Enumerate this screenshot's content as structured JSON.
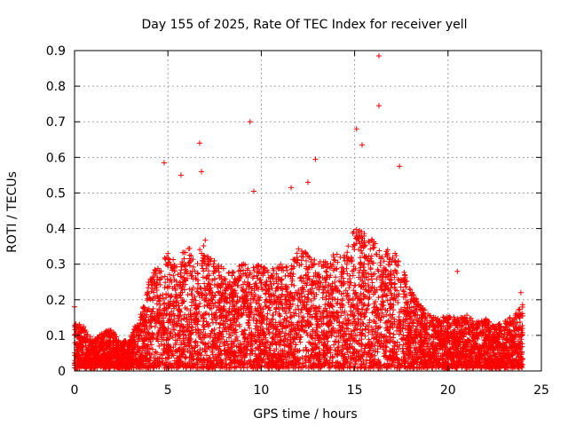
{
  "chart_data": {
    "type": "scatter",
    "title": "Day 155 of 2025, Rate Of TEC Index for receiver yell",
    "xlabel": "GPS time / hours",
    "ylabel": "ROTI / TECUs",
    "xlim": [
      0,
      25
    ],
    "ylim": [
      0,
      0.9
    ],
    "x_ticks": [
      0,
      5,
      10,
      15,
      20,
      25
    ],
    "y_ticks": [
      0,
      0.1,
      0.2,
      0.3,
      0.4,
      0.5,
      0.6,
      0.7,
      0.8,
      0.9
    ],
    "grid": true,
    "marker": "+",
    "color": "#ff0000",
    "series": [
      {
        "name": "ROTI",
        "x_range": [
          0,
          24
        ],
        "notable_points": [
          {
            "x": 16.3,
            "y": 0.885
          },
          {
            "x": 16.3,
            "y": 0.745
          },
          {
            "x": 9.4,
            "y": 0.7
          },
          {
            "x": 15.1,
            "y": 0.68
          },
          {
            "x": 6.7,
            "y": 0.64
          },
          {
            "x": 15.4,
            "y": 0.635
          },
          {
            "x": 12.9,
            "y": 0.595
          },
          {
            "x": 4.8,
            "y": 0.585
          },
          {
            "x": 17.4,
            "y": 0.575
          },
          {
            "x": 6.8,
            "y": 0.56
          },
          {
            "x": 5.7,
            "y": 0.55
          },
          {
            "x": 12.5,
            "y": 0.53
          },
          {
            "x": 11.6,
            "y": 0.515
          },
          {
            "x": 9.6,
            "y": 0.505
          },
          {
            "x": 20.5,
            "y": 0.28
          },
          {
            "x": 0.0,
            "y": 0.18
          },
          {
            "x": 23.9,
            "y": 0.22
          }
        ],
        "envelope": {
          "hours": [
            0,
            0.5,
            1,
            1.5,
            2,
            2.5,
            3,
            3.5,
            4,
            4.5,
            5,
            5.5,
            6,
            6.5,
            7,
            7.5,
            8,
            8.5,
            9,
            9.5,
            10,
            10.5,
            11,
            11.5,
            12,
            12.5,
            13,
            13.5,
            14,
            14.5,
            15,
            15.5,
            16,
            16.5,
            17,
            17.5,
            18,
            18.5,
            19,
            19.5,
            20,
            20.5,
            21,
            21.5,
            22,
            22.5,
            23,
            23.5,
            24
          ],
          "typical_max": [
            0.13,
            0.12,
            0.08,
            0.1,
            0.11,
            0.07,
            0.09,
            0.15,
            0.25,
            0.3,
            0.33,
            0.3,
            0.35,
            0.32,
            0.36,
            0.3,
            0.28,
            0.27,
            0.3,
            0.28,
            0.3,
            0.29,
            0.3,
            0.28,
            0.35,
            0.32,
            0.3,
            0.3,
            0.34,
            0.32,
            0.4,
            0.38,
            0.36,
            0.33,
            0.34,
            0.3,
            0.22,
            0.18,
            0.15,
            0.14,
            0.15,
            0.14,
            0.15,
            0.13,
            0.14,
            0.12,
            0.13,
            0.15,
            0.18
          ]
        }
      }
    ]
  }
}
